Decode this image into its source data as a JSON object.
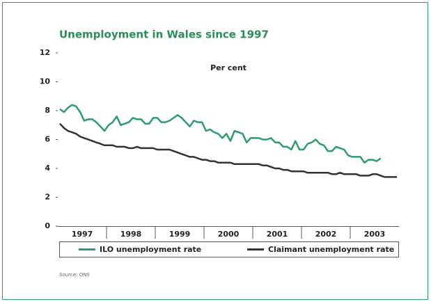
{
  "chart_data": {
    "type": "line",
    "title": "Unemployment in Wales since 1997",
    "y_label": "Per cent",
    "source": "Source: ONS",
    "categories": [
      "1997",
      "1998",
      "1999",
      "2000",
      "2001",
      "2002",
      "2003"
    ],
    "ylim": [
      0,
      12
    ],
    "yticks": [
      0,
      2,
      4,
      6,
      8,
      10,
      12
    ],
    "legend": "bottom",
    "series": [
      {
        "name": "ILO unemployment rate",
        "color": "#2a9d6a",
        "values": [
          [
            8.1,
            7.9,
            8.2,
            8.4,
            8.3,
            7.9,
            7.3,
            7.4,
            7.4,
            7.2,
            6.9,
            6.6
          ],
          [
            7.0,
            7.2,
            7.6,
            7.0,
            7.1,
            7.2,
            7.5,
            7.4,
            7.4,
            7.1,
            7.1,
            7.5
          ],
          [
            7.5,
            7.2,
            7.2,
            7.3,
            7.5,
            7.7,
            7.5,
            7.2,
            6.9,
            7.3,
            7.2,
            7.2
          ],
          [
            6.6,
            6.7,
            6.5,
            6.4,
            6.1,
            6.4,
            5.9,
            6.6,
            6.5,
            6.4,
            5.8,
            6.1
          ],
          [
            6.1,
            6.1,
            6.0,
            6.0,
            6.1,
            5.8,
            5.8,
            5.5,
            5.5,
            5.3,
            5.9,
            5.3
          ],
          [
            5.3,
            5.7,
            5.8,
            6.0,
            5.7,
            5.6,
            5.2,
            5.2,
            5.5,
            5.4,
            5.3,
            4.9
          ],
          [
            4.8,
            4.8,
            4.8,
            4.4,
            4.6,
            4.6,
            4.5,
            4.7,
            null,
            null,
            null,
            null
          ]
        ]
      },
      {
        "name": "Claimant unemployment rate",
        "color": "#333333",
        "values": [
          [
            7.1,
            6.8,
            6.6,
            6.5,
            6.4,
            6.2,
            6.1,
            6.0,
            5.9,
            5.8,
            5.7,
            5.6
          ],
          [
            5.6,
            5.6,
            5.5,
            5.5,
            5.5,
            5.4,
            5.4,
            5.5,
            5.4,
            5.4,
            5.4,
            5.4
          ],
          [
            5.3,
            5.3,
            5.3,
            5.3,
            5.2,
            5.1,
            5.0,
            4.9,
            4.8,
            4.8,
            4.7,
            4.6
          ],
          [
            4.6,
            4.5,
            4.5,
            4.4,
            4.4,
            4.4,
            4.4,
            4.3,
            4.3,
            4.3,
            4.3,
            4.3
          ],
          [
            4.3,
            4.3,
            4.2,
            4.2,
            4.1,
            4.0,
            4.0,
            3.9,
            3.9,
            3.8,
            3.8,
            3.8
          ],
          [
            3.8,
            3.7,
            3.7,
            3.7,
            3.7,
            3.7,
            3.7,
            3.6,
            3.6,
            3.7,
            3.6,
            3.6
          ],
          [
            3.6,
            3.6,
            3.5,
            3.5,
            3.5,
            3.6,
            3.6,
            3.5,
            3.4,
            3.4,
            3.4,
            3.4
          ]
        ]
      }
    ]
  }
}
